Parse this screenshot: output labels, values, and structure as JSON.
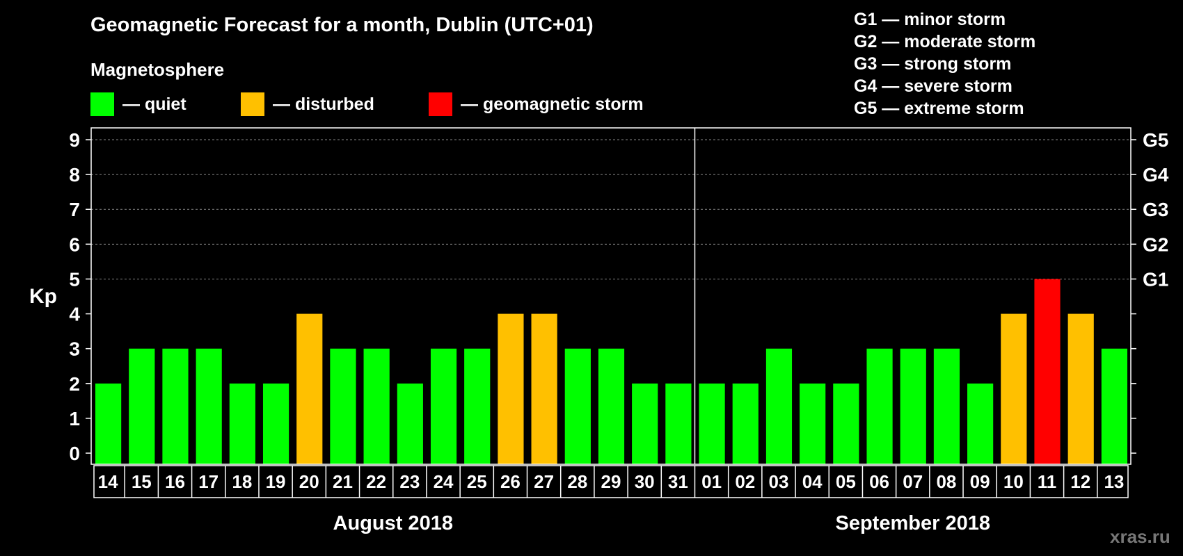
{
  "title": "Geomagnetic Forecast for a month, Dublin (UTC+01)",
  "subtitle": "Magnetosphere",
  "legend": [
    {
      "label": "— quiet",
      "color": "#00ff00"
    },
    {
      "label": "— disturbed",
      "color": "#ffc000"
    },
    {
      "label": "— geomagnetic storm",
      "color": "#ff0000"
    }
  ],
  "g_scale": [
    "G1 — minor storm",
    "G2 — moderate storm",
    "G3 — strong storm",
    "G4 — severe storm",
    "G5 — extreme storm"
  ],
  "watermark": "xras.ru",
  "chart_data": {
    "type": "bar",
    "title": "Geomagnetic Forecast for a month, Dublin (UTC+01)",
    "ylabel": "Kp",
    "ylim": [
      0,
      9
    ],
    "yticks": [
      "0",
      "1",
      "2",
      "3",
      "4",
      "5",
      "6",
      "7",
      "8",
      "9"
    ],
    "right_axis_labels": [
      {
        "kp": 5,
        "label": "G1"
      },
      {
        "kp": 6,
        "label": "G2"
      },
      {
        "kp": 7,
        "label": "G3"
      },
      {
        "kp": 8,
        "label": "G4"
      },
      {
        "kp": 9,
        "label": "G5"
      }
    ],
    "categories": [
      "14",
      "15",
      "16",
      "17",
      "18",
      "19",
      "20",
      "21",
      "22",
      "23",
      "24",
      "25",
      "26",
      "27",
      "28",
      "29",
      "30",
      "31",
      "01",
      "02",
      "03",
      "04",
      "05",
      "06",
      "07",
      "08",
      "09",
      "10",
      "11",
      "12",
      "13"
    ],
    "values": [
      2,
      3,
      3,
      3,
      2,
      2,
      4,
      3,
      3,
      2,
      3,
      3,
      4,
      4,
      3,
      3,
      2,
      2,
      2,
      2,
      3,
      2,
      2,
      3,
      3,
      3,
      2,
      4,
      5,
      4,
      3
    ],
    "months": [
      {
        "label": "August 2018",
        "first_index": 0,
        "last_index": 17
      },
      {
        "label": "September 2018",
        "first_index": 18,
        "last_index": 30
      }
    ],
    "color_thresholds": {
      "quiet_max": 3,
      "disturbed_max": 4
    },
    "colors": {
      "quiet": "#00ff00",
      "disturbed": "#ffc000",
      "storm": "#ff0000",
      "grid": "#888888"
    }
  }
}
